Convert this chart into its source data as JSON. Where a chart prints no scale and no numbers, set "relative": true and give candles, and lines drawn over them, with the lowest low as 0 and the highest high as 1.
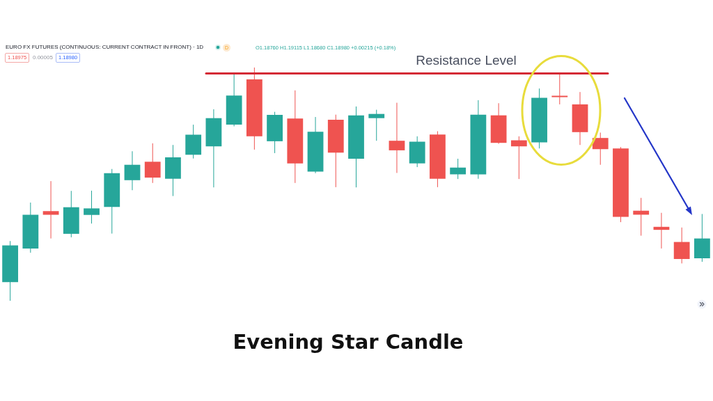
{
  "chart_data": {
    "type": "candlestick",
    "title": "Evening Star Candle",
    "subtitle": "EURO FX FUTURES (CONTINUOUS: CURRENT CONTRACT IN FRONT) · 1D",
    "annotations": [
      "D",
      "O1.18760 H1.19115 L1.18680 C1.18980 +0.00215 (+0.18%)",
      "1.18975",
      "0.00005",
      "1.18980"
    ],
    "categories": [
      null,
      null,
      null,
      null,
      null,
      null,
      null,
      null,
      null,
      null,
      null,
      null,
      null,
      null,
      null,
      null,
      null,
      null,
      null,
      null,
      null,
      null,
      null,
      null,
      null,
      null,
      null,
      null,
      null,
      null,
      null,
      null,
      null,
      null,
      null
    ],
    "relative": true,
    "ohlc": [
      [
        0.08,
        0.256,
        0,
        0.237
      ],
      [
        0.224,
        0.421,
        0.206,
        0.369
      ],
      [
        0.384,
        0.513,
        0.267,
        0.369
      ],
      [
        0.287,
        0.471,
        0.272,
        0.401
      ],
      [
        0.368,
        0.472,
        0.331,
        0.396
      ],
      [
        0.402,
        0.565,
        0.288,
        0.547
      ],
      [
        0.517,
        0.641,
        0.474,
        0.583
      ],
      [
        0.596,
        0.675,
        0.505,
        0.528
      ],
      [
        0.523,
        0.668,
        0.449,
        0.615
      ],
      [
        0.626,
        0.755,
        0.61,
        0.712
      ],
      [
        0.662,
        0.821,
        0.486,
        0.783
      ],
      [
        0.755,
        0.972,
        0.748,
        0.88
      ],
      [
        0.949,
        1,
        0.648,
        0.705
      ],
      [
        0.684,
        0.81,
        0.633,
        0.797
      ],
      [
        0.781,
        0.902,
        0.505,
        0.589
      ],
      [
        0.554,
        0.788,
        0.547,
        0.725
      ],
      [
        0.776,
        0.798,
        0.487,
        0.635
      ],
      [
        0.609,
        0.833,
        0.486,
        0.795
      ],
      [
        0.783,
        0.819,
        0.686,
        0.801
      ],
      [
        0.686,
        0.849,
        0.548,
        0.645
      ],
      [
        0.589,
        0.705,
        0.573,
        0.682
      ],
      [
        0.713,
        0.727,
        0.487,
        0.523
      ],
      [
        0.542,
        0.609,
        0.522,
        0.571
      ],
      [
        0.542,
        0.86,
        0.523,
        0.798
      ],
      [
        0.795,
        0.847,
        0.673,
        0.677
      ],
      [
        0.688,
        0.705,
        0.522,
        0.662
      ],
      [
        0.679,
        0.91,
        0.653,
        0.87
      ],
      [
        0.879,
        0.977,
        0.842,
        0.873
      ],
      [
        0.842,
        0.895,
        0.668,
        0.723
      ],
      [
        0.698,
        0.721,
        0.583,
        0.65
      ],
      [
        0.653,
        0.659,
        0.337,
        0.36
      ],
      [
        0.386,
        0.441,
        0.279,
        0.369
      ],
      [
        0.317,
        0.377,
        0.224,
        0.304
      ],
      [
        0.252,
        0.314,
        0.16,
        0.179
      ],
      [
        0.182,
        0.372,
        0.167,
        0.267
      ]
    ],
    "colors": [
      "#26a69a",
      "#26a69a",
      "#ef5350",
      "#26a69a",
      "#26a69a",
      "#26a69a",
      "#26a69a",
      "#ef5350",
      "#26a69a",
      "#26a69a",
      "#26a69a",
      "#26a69a",
      "#ef5350",
      "#26a69a",
      "#ef5350",
      "#26a69a",
      "#ef5350",
      "#26a69a",
      "#26a69a",
      "#ef5350",
      "#26a69a",
      "#ef5350",
      "#26a69a",
      "#26a69a",
      "#ef5350",
      "#ef5350",
      "#26a69a",
      "#ef5350",
      "#ef5350",
      "#ef5350",
      "#ef5350",
      "#ef5350",
      "#ef5350",
      "#ef5350",
      "#26a69a"
    ],
    "ref_lines": [
      {
        "axis": "y",
        "value": 0.975,
        "label": "Resistance Level",
        "color": "#d42a35"
      }
    ]
  }
}
